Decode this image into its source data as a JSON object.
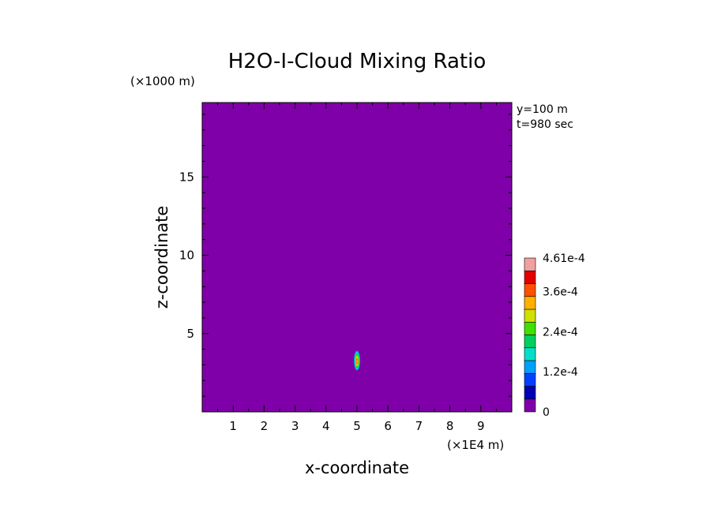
{
  "chart_data": {
    "type": "heatmap",
    "title": "H2O-I-Cloud Mixing Ratio",
    "xlabel": "x-coordinate",
    "ylabel": "z-coordinate",
    "x_scale_label": "(×1E4 m)",
    "y_scale_label": "(×1000 m)",
    "annotations": [
      "y=100 m",
      "t=980 sec"
    ],
    "xlim": [
      0,
      10
    ],
    "ylim": [
      0,
      19.75
    ],
    "x_ticks": [
      1,
      2,
      3,
      4,
      5,
      6,
      7,
      8,
      9
    ],
    "x_tick_labels": [
      "1",
      "2",
      "3",
      "4",
      "5",
      "6",
      "7",
      "8",
      "9"
    ],
    "y_ticks": [
      5,
      10,
      15
    ],
    "y_tick_labels": [
      "5",
      "10",
      "15"
    ],
    "background_value": 0,
    "background_color": "#7f00a8",
    "colorbar": {
      "min": 0,
      "max": 0.000461,
      "labels": [
        {
          "value": 0,
          "text": "0"
        },
        {
          "value": 0.00012,
          "text": "1.2e-4"
        },
        {
          "value": 0.00024,
          "text": "2.4e-4"
        },
        {
          "value": 0.00036,
          "text": "3.6e-4"
        },
        {
          "value": 0.000461,
          "text": "4.61e-4"
        }
      ],
      "colors": [
        "#7f00a8",
        "#0000b4",
        "#0040ff",
        "#00a0ff",
        "#00e0c8",
        "#00d060",
        "#40e000",
        "#d0e000",
        "#ffb000",
        "#ff5000",
        "#e00000",
        "#f0a0a0"
      ]
    },
    "cloud_feature": {
      "x_center": 5.0,
      "z_bottom": 2.65,
      "z_top": 3.9,
      "half_width": 0.1,
      "peak_value": 0.000461
    }
  }
}
